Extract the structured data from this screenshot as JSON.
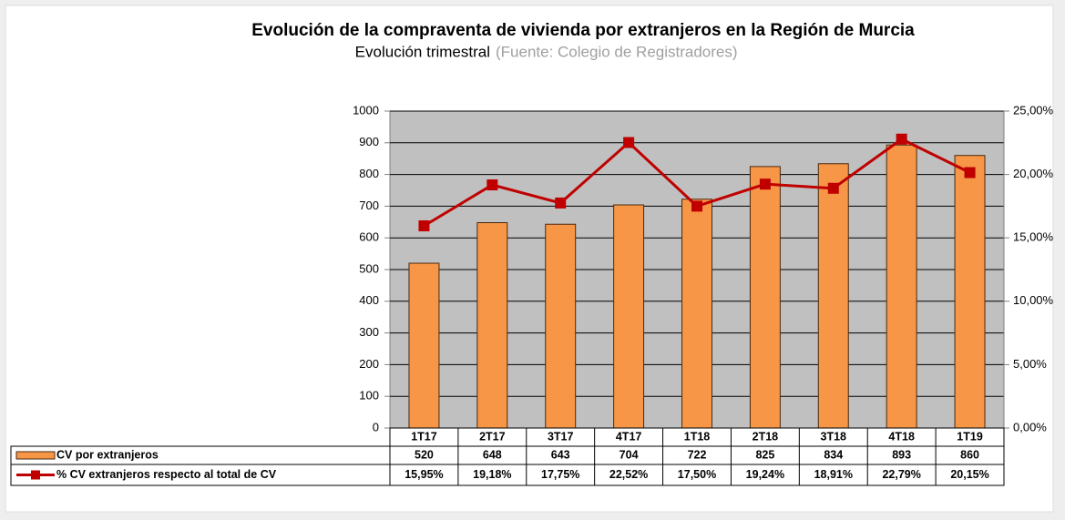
{
  "chart_data": {
    "type": "bar",
    "title": "Evolución de la compraventa de vivienda por extranjeros en la Región de Murcia",
    "subtitle": "Evolución trimestral",
    "source": "(Fuente: Colegio de Registradores)",
    "categories": [
      "1T17",
      "2T17",
      "3T17",
      "4T17",
      "1T18",
      "2T18",
      "3T18",
      "4T18",
      "1T19"
    ],
    "series": [
      {
        "name": "CV por extranjeros",
        "type": "bar",
        "color": "#f79646",
        "values": [
          520,
          648,
          643,
          704,
          722,
          825,
          834,
          893,
          860
        ]
      },
      {
        "name": "% CV extranjeros respecto al total de CV",
        "type": "line",
        "axis": "y2",
        "color": "#c00000",
        "values": [
          15.95,
          19.18,
          17.75,
          22.52,
          17.5,
          19.24,
          18.91,
          22.79,
          20.15
        ],
        "value_labels": [
          "15,95%",
          "19,18%",
          "17,75%",
          "22,52%",
          "17,50%",
          "19,24%",
          "18,91%",
          "22,79%",
          "20,15%"
        ]
      }
    ],
    "ylim": [
      0,
      1000
    ],
    "yticks": [
      0,
      100,
      200,
      300,
      400,
      500,
      600,
      700,
      800,
      900,
      1000
    ],
    "y2lim": [
      0,
      25
    ],
    "y2ticks": [
      {
        "value": 0,
        "label": "0,00%"
      },
      {
        "value": 5,
        "label": "5,00%"
      },
      {
        "value": 10,
        "label": "10,00%"
      },
      {
        "value": 15,
        "label": "15,00%"
      },
      {
        "value": 20,
        "label": "20,00%"
      },
      {
        "value": 25,
        "label": "25,00%"
      }
    ],
    "grid": true,
    "plot_background": "#c0c0c0"
  }
}
